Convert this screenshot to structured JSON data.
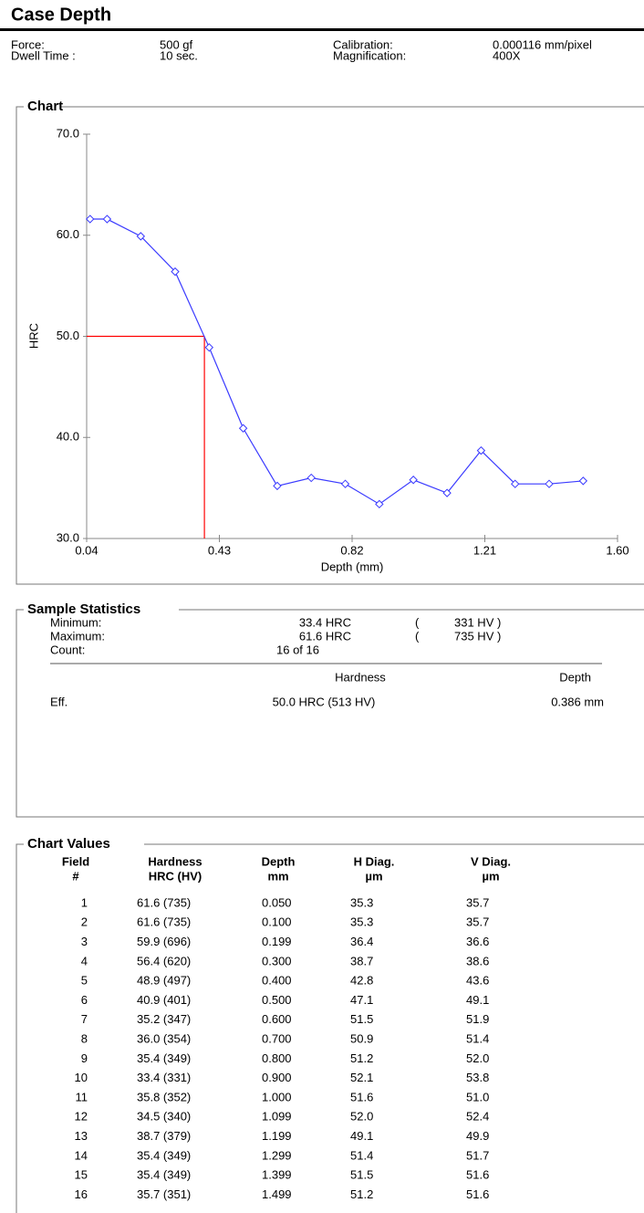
{
  "header": {
    "title": "Case Depth",
    "fields": [
      {
        "label": "Force:",
        "value": "500 gf"
      },
      {
        "label": "Dwell Time :",
        "value": "10 sec."
      },
      {
        "label": "Calibration:",
        "value": "0.000116 mm/pixel"
      },
      {
        "label": "Magnification:",
        "value": "400X"
      }
    ]
  },
  "chart_section": {
    "title": "Chart"
  },
  "chart_data": {
    "type": "line",
    "xlabel": "Depth (mm)",
    "ylabel": "HRC",
    "x": [
      0.05,
      0.1,
      0.199,
      0.3,
      0.4,
      0.5,
      0.6,
      0.7,
      0.8,
      0.9,
      1.0,
      1.099,
      1.199,
      1.299,
      1.399,
      1.499
    ],
    "values": [
      61.6,
      61.6,
      59.9,
      56.4,
      48.9,
      40.9,
      35.2,
      36.0,
      35.4,
      33.4,
      35.8,
      34.5,
      38.7,
      35.4,
      35.4,
      35.7
    ],
    "color": "#3a3aff",
    "marker": "diamond",
    "xlim": [
      0.04,
      1.6
    ],
    "xticks": [
      0.04,
      0.43,
      0.82,
      1.21,
      {
        "value": 1.6,
        "label": "1.60"
      }
    ],
    "ylim": [
      30,
      70
    ],
    "yticks": [
      {
        "value": 30,
        "label": "30.0"
      },
      {
        "value": 40,
        "label": "40.0"
      },
      {
        "value": 50,
        "label": "50.0"
      },
      {
        "value": 60,
        "label": "60.0"
      },
      {
        "value": 70,
        "label": "70.0"
      }
    ],
    "cutoff": {
      "x": 0.386,
      "y": 50,
      "color": "#ff0000"
    }
  },
  "statistics": {
    "title": "Sample Statistics",
    "rows": [
      [
        "Minimum:",
        "33.4 HRC",
        "(",
        "331 HV )"
      ],
      [
        "Maximum:",
        "61.6 HRC",
        "(",
        "735 HV )"
      ],
      [
        "Count:",
        "16 of 16"
      ]
    ],
    "headers": [
      "Hardness",
      "Depth"
    ],
    "eff": [
      "Eff.",
      "50.0 HRC (513 HV)",
      "0.386 mm"
    ]
  },
  "table": {
    "title": "Chart Values",
    "columns": [
      [
        "Field",
        "#"
      ],
      [
        "Hardness",
        "HRC (HV)"
      ],
      [
        "Depth",
        "mm"
      ],
      [
        "H Diag.",
        "µm"
      ],
      [
        "V Diag.",
        "µm"
      ]
    ],
    "rows": [
      [
        "1",
        "61.6 (735)",
        "0.050",
        "35.3",
        "35.7"
      ],
      [
        "2",
        "61.6 (735)",
        "0.100",
        "35.3",
        "35.7"
      ],
      [
        "3",
        "59.9 (696)",
        "0.199",
        "36.4",
        "36.6"
      ],
      [
        "4",
        "56.4 (620)",
        "0.300",
        "38.7",
        "38.6"
      ],
      [
        "5",
        "48.9 (497)",
        "0.400",
        "42.8",
        "43.6"
      ],
      [
        "6",
        "40.9 (401)",
        "0.500",
        "47.1",
        "49.1"
      ],
      [
        "7",
        "35.2 (347)",
        "0.600",
        "51.5",
        "51.9"
      ],
      [
        "8",
        "36.0 (354)",
        "0.700",
        "50.9",
        "51.4"
      ],
      [
        "9",
        "35.4 (349)",
        "0.800",
        "51.2",
        "52.0"
      ],
      [
        "10",
        "33.4 (331)",
        "0.900",
        "52.1",
        "53.8"
      ],
      [
        "11",
        "35.8 (352)",
        "1.000",
        "51.6",
        "51.0"
      ],
      [
        "12",
        "34.5 (340)",
        "1.099",
        "52.0",
        "52.4"
      ],
      [
        "13",
        "38.7 (379)",
        "1.199",
        "49.1",
        "49.9"
      ],
      [
        "14",
        "35.4 (349)",
        "1.299",
        "51.4",
        "51.7"
      ],
      [
        "15",
        "35.4 (349)",
        "1.399",
        "51.5",
        "51.6"
      ],
      [
        "16",
        "35.7 (351)",
        "1.499",
        "51.2",
        "51.6"
      ]
    ]
  }
}
